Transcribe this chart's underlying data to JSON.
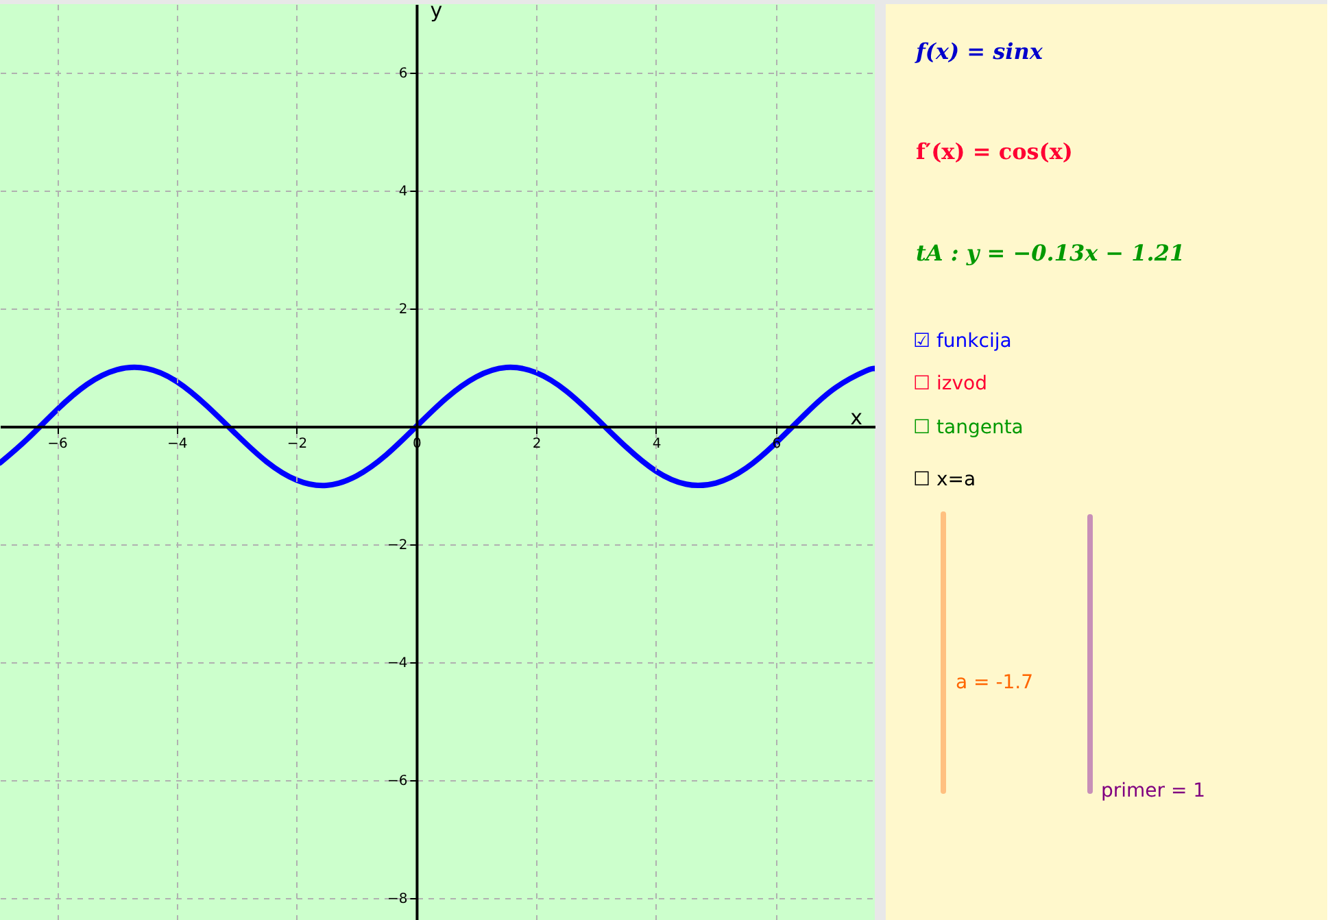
{
  "chart_data": {
    "type": "line",
    "xlabel": "x",
    "ylabel": "y",
    "x": [
      -6.95,
      -6.5,
      -6.0,
      -5.5,
      -5.0,
      -4.5,
      -4.0,
      -3.5,
      -3.0,
      -2.5,
      -2.0,
      -1.5,
      -1.0,
      -0.5,
      0.0,
      0.5,
      1.0,
      1.5,
      2.0,
      2.5,
      3.0,
      3.5,
      4.0,
      4.5,
      5.0,
      5.5,
      6.0,
      6.5,
      7.0,
      7.5,
      7.65
    ],
    "series": [
      {
        "color": "#0000ff",
        "values": [
          -0.62,
          -0.22,
          0.28,
          0.71,
          0.96,
          0.98,
          0.76,
          0.35,
          -0.14,
          -0.6,
          -0.91,
          -1.0,
          -0.84,
          -0.48,
          0.0,
          0.48,
          0.84,
          1.0,
          0.91,
          0.6,
          0.14,
          -0.35,
          -0.76,
          -0.98,
          -0.96,
          -0.71,
          -0.28,
          0.22,
          0.66,
          0.94,
          0.98
        ]
      }
    ],
    "xlim": [
      -6.95,
      7.65
    ],
    "ylim": [
      -8.37,
      7.16
    ],
    "xticks": [
      {
        "value": -6,
        "label": "−6"
      },
      {
        "value": -4,
        "label": "−4"
      },
      {
        "value": -2,
        "label": "−2"
      },
      0,
      2,
      4,
      6
    ],
    "yticks": [
      {
        "value": -8,
        "label": "−8"
      },
      {
        "value": -6,
        "label": "−6"
      },
      {
        "value": -4,
        "label": "−4"
      },
      {
        "value": -2,
        "label": "−2"
      },
      2,
      4,
      6
    ],
    "grid": true,
    "line_style": "solid",
    "marker": "none",
    "annotations": [
      "f(x) = sinx",
      "f′(x) = cos(x)",
      "tA :  y = −0.13x − 1.21",
      "☑ funkcija",
      "☐ izvod",
      "☐ tangenta",
      "☐ x=a",
      "a = -1.7",
      "primer = 1"
    ]
  }
}
